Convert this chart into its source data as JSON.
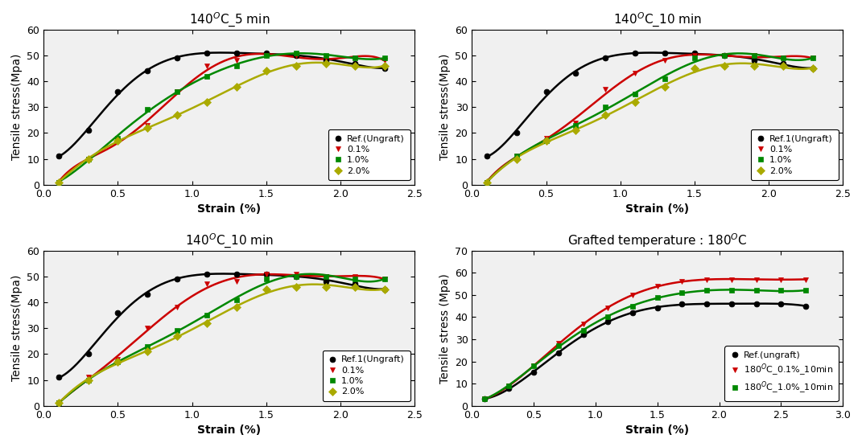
{
  "subplots": [
    {
      "title": "140$^O$C_5 min",
      "ylabel": "Tensile stress(Mpa)",
      "xlabel": "Strain (%)",
      "xlim": [
        0.0,
        2.5
      ],
      "ylim": [
        0,
        60
      ],
      "xticks": [
        0.0,
        0.5,
        1.0,
        1.5,
        2.0,
        2.5
      ],
      "yticks": [
        0,
        10,
        20,
        30,
        40,
        50,
        60
      ],
      "series": [
        {
          "label": "Ref.(Ungraft)",
          "color": "#000000",
          "marker": "o",
          "markersize": 5,
          "x": [
            0.1,
            0.3,
            0.5,
            0.7,
            0.9,
            1.1,
            1.3,
            1.5,
            1.7,
            1.9,
            2.1,
            2.3
          ],
          "y": [
            11,
            21,
            36,
            44,
            49,
            51,
            51,
            51,
            50,
            48,
            47,
            45
          ]
        },
        {
          "label": "0.1%",
          "color": "#cc0000",
          "marker": "v",
          "markersize": 5,
          "x": [
            0.1,
            0.3,
            0.5,
            0.7,
            0.9,
            1.1,
            1.3,
            1.5,
            1.7,
            1.9,
            2.1,
            2.3
          ],
          "y": [
            1,
            10,
            17,
            23,
            36,
            46,
            48,
            50,
            50,
            49,
            49,
            48
          ]
        },
        {
          "label": "1.0%",
          "color": "#008800",
          "marker": "s",
          "markersize": 5,
          "x": [
            0.1,
            0.3,
            0.5,
            0.7,
            0.9,
            1.1,
            1.3,
            1.5,
            1.7,
            1.9,
            2.1,
            2.3
          ],
          "y": [
            1,
            10,
            18,
            29,
            36,
            42,
            46,
            50,
            51,
            50,
            49,
            49
          ]
        },
        {
          "label": "2.0%",
          "color": "#aaaa00",
          "marker": "D",
          "markersize": 5,
          "x": [
            0.1,
            0.3,
            0.5,
            0.7,
            0.9,
            1.1,
            1.3,
            1.5,
            1.7,
            1.9,
            2.1,
            2.3
          ],
          "y": [
            1,
            10,
            17,
            22,
            27,
            32,
            38,
            44,
            46,
            47,
            46,
            46
          ]
        }
      ],
      "legend_loc": "lower right"
    },
    {
      "title": "140$^O$C_10 min",
      "ylabel": "Tensile stress(Mpa)",
      "xlabel": "Strain (%)",
      "xlim": [
        0.0,
        2.5
      ],
      "ylim": [
        0,
        60
      ],
      "xticks": [
        0.0,
        0.5,
        1.0,
        1.5,
        2.0,
        2.5
      ],
      "yticks": [
        0,
        10,
        20,
        30,
        40,
        50,
        60
      ],
      "series": [
        {
          "label": "Ref.1(Ungraft)",
          "color": "#000000",
          "marker": "o",
          "markersize": 5,
          "x": [
            0.1,
            0.3,
            0.5,
            0.7,
            0.9,
            1.1,
            1.3,
            1.5,
            1.7,
            1.9,
            2.1,
            2.3
          ],
          "y": [
            11,
            20,
            36,
            43,
            49,
            51,
            51,
            51,
            50,
            48,
            47,
            45
          ]
        },
        {
          "label": "0.1%",
          "color": "#cc0000",
          "marker": "v",
          "markersize": 5,
          "x": [
            0.1,
            0.3,
            0.5,
            0.7,
            0.9,
            1.1,
            1.3,
            1.5,
            1.7,
            1.9,
            2.1,
            2.3
          ],
          "y": [
            1,
            11,
            18,
            24,
            37,
            43,
            48,
            50,
            50,
            50,
            49,
            49
          ]
        },
        {
          "label": "1.0%",
          "color": "#008800",
          "marker": "s",
          "markersize": 5,
          "x": [
            0.1,
            0.3,
            0.5,
            0.7,
            0.9,
            1.1,
            1.3,
            1.5,
            1.7,
            1.9,
            2.1,
            2.3
          ],
          "y": [
            1,
            11,
            17,
            23,
            30,
            35,
            41,
            49,
            50,
            50,
            49,
            49
          ]
        },
        {
          "label": "2.0%",
          "color": "#aaaa00",
          "marker": "D",
          "markersize": 5,
          "x": [
            0.1,
            0.3,
            0.5,
            0.7,
            0.9,
            1.1,
            1.3,
            1.5,
            1.7,
            1.9,
            2.1,
            2.3
          ],
          "y": [
            1,
            10,
            17,
            21,
            27,
            32,
            38,
            45,
            46,
            46,
            46,
            45
          ]
        }
      ],
      "legend_loc": "lower right"
    },
    {
      "title": "140$^O$C_10 min",
      "ylabel": "Tensile stress(Mpa)",
      "xlabel": "Strain (%)",
      "xlim": [
        0.0,
        2.5
      ],
      "ylim": [
        0,
        60
      ],
      "xticks": [
        0.0,
        0.5,
        1.0,
        1.5,
        2.0,
        2.5
      ],
      "yticks": [
        0,
        10,
        20,
        30,
        40,
        50,
        60
      ],
      "series": [
        {
          "label": "Ref.1(Ungraft)",
          "color": "#000000",
          "marker": "o",
          "markersize": 5,
          "x": [
            0.1,
            0.3,
            0.5,
            0.7,
            0.9,
            1.1,
            1.3,
            1.5,
            1.7,
            1.9,
            2.1,
            2.3
          ],
          "y": [
            11,
            20,
            36,
            43,
            49,
            51,
            51,
            51,
            50,
            48,
            47,
            45
          ]
        },
        {
          "label": "0.1%",
          "color": "#cc0000",
          "marker": "v",
          "markersize": 5,
          "x": [
            0.1,
            0.3,
            0.5,
            0.7,
            0.9,
            1.1,
            1.3,
            1.5,
            1.7,
            1.9,
            2.1,
            2.3
          ],
          "y": [
            1,
            11,
            18,
            30,
            38,
            47,
            48,
            51,
            51,
            50,
            50,
            49
          ]
        },
        {
          "label": "1.0%",
          "color": "#008800",
          "marker": "s",
          "markersize": 5,
          "x": [
            0.1,
            0.3,
            0.5,
            0.7,
            0.9,
            1.1,
            1.3,
            1.5,
            1.7,
            1.9,
            2.1,
            2.3
          ],
          "y": [
            1,
            10,
            17,
            23,
            29,
            35,
            41,
            49,
            50,
            50,
            49,
            49
          ]
        },
        {
          "label": "2.0%",
          "color": "#aaaa00",
          "marker": "D",
          "markersize": 5,
          "x": [
            0.1,
            0.3,
            0.5,
            0.7,
            0.9,
            1.1,
            1.3,
            1.5,
            1.7,
            1.9,
            2.1,
            2.3
          ],
          "y": [
            1,
            10,
            17,
            21,
            27,
            32,
            38,
            45,
            46,
            46,
            46,
            45
          ]
        }
      ],
      "legend_loc": "lower right"
    },
    {
      "title": "Grafted temperature : 180$^O$C",
      "ylabel": "Tensile stress (Mpa)",
      "xlabel": "Strain (%)",
      "xlim": [
        0.0,
        3.0
      ],
      "ylim": [
        0,
        70
      ],
      "xticks": [
        0.0,
        0.5,
        1.0,
        1.5,
        2.0,
        2.5,
        3.0
      ],
      "yticks": [
        0,
        10,
        20,
        30,
        40,
        50,
        60,
        70
      ],
      "series": [
        {
          "label": "Ref.(ungraft)",
          "color": "#000000",
          "marker": "o",
          "markersize": 5,
          "x": [
            0.1,
            0.3,
            0.5,
            0.7,
            0.9,
            1.1,
            1.3,
            1.5,
            1.7,
            1.9,
            2.1,
            2.3,
            2.5,
            2.7
          ],
          "y": [
            3,
            8,
            15,
            24,
            32,
            38,
            42,
            44,
            46,
            46,
            46,
            46,
            46,
            45
          ]
        },
        {
          "label": "180$^O$C_0.1%_10min",
          "color": "#cc0000",
          "marker": "v",
          "markersize": 5,
          "x": [
            0.1,
            0.3,
            0.5,
            0.7,
            0.9,
            1.1,
            1.3,
            1.5,
            1.7,
            1.9,
            2.1,
            2.3,
            2.5,
            2.7
          ],
          "y": [
            3,
            9,
            18,
            28,
            37,
            44,
            50,
            54,
            56,
            57,
            57,
            57,
            57,
            57
          ]
        },
        {
          "label": "180$^O$C_1.0%_10min",
          "color": "#008800",
          "marker": "s",
          "markersize": 5,
          "x": [
            0.1,
            0.3,
            0.5,
            0.7,
            0.9,
            1.1,
            1.3,
            1.5,
            1.7,
            1.9,
            2.1,
            2.3,
            2.5,
            2.7
          ],
          "y": [
            3,
            9,
            18,
            27,
            34,
            40,
            45,
            49,
            51,
            52,
            52,
            52,
            52,
            52
          ]
        }
      ],
      "legend_loc": "lower right"
    }
  ],
  "bg_color": "#f0f0f0",
  "fig_bg": "#ffffff"
}
